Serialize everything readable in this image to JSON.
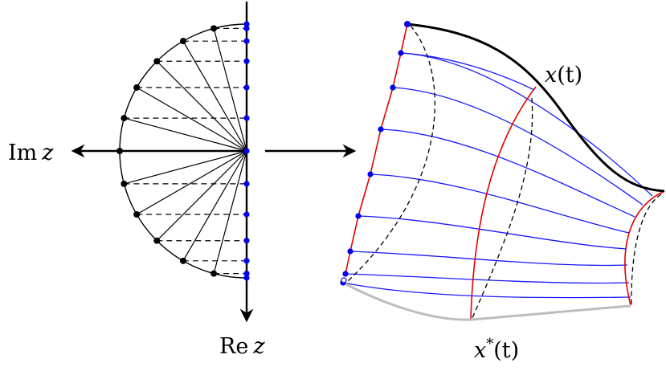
{
  "labels": {
    "im_z": {
      "prefix": "Im",
      "var": "z"
    },
    "re_z": {
      "prefix": "Re",
      "var": "z"
    },
    "x_t": {
      "var": "x",
      "arg": "(t)"
    },
    "x_star_t": {
      "var": "x",
      "sup": "*",
      "arg": "(t)"
    }
  },
  "colors": {
    "ink": "#000000",
    "point_black": "#000000",
    "point_blue": "#0000ee",
    "curve_blue": "#1a1aff",
    "curve_red": "#e60000",
    "boundary_gray": "#bdbdbd",
    "dashed": "#000000"
  },
  "semicircle": {
    "radial_line_count": 13,
    "black_point_count": 11,
    "blue_point_count": 13
  },
  "mapped_region": {
    "blue_curve_count": 9,
    "red_curve_count": 2,
    "dashed_curve_count": 3,
    "red_points_count": 9
  }
}
